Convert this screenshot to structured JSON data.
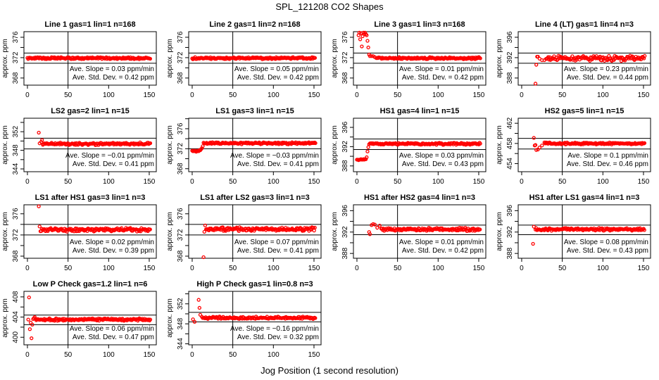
{
  "title": "SPL_121208  CO2 Shapes",
  "xlabel": "Jog Position (1 second resolution)",
  "colors": {
    "points": "#ff0000",
    "axes": "#000000"
  },
  "chart_data": {
    "type": "scatter",
    "shared": {
      "xlim": [
        -4.3,
        158.7
      ],
      "xticks": [
        0,
        50,
        100,
        150
      ],
      "ylabel": "approx. ppm",
      "vertical_reference_x": 50,
      "slope_prefix": "Ave. Slope = ",
      "slope_unit": " ppm/min",
      "sd_prefix": "Ave. Std. Dev. = ",
      "sd_unit": " ppm"
    },
    "panels": [
      {
        "title": "Line 1 gas=1 lin=1 n=168",
        "ylim": [
          366.6,
          377.1
        ],
        "yticks": [
          368,
          372,
          376
        ],
        "band": [
          370.9,
          372.9
        ],
        "slope": "0.03",
        "sd": "0.42",
        "transient": [],
        "steady": {
          "from": 0,
          "to": 152,
          "mean": 371.9,
          "noise": 0.12
        }
      },
      {
        "title": "Line 2 gas=1 lin=2 n=168",
        "ylim": [
          366.6,
          377.1
        ],
        "yticks": [
          368,
          372,
          376
        ],
        "band": [
          370.9,
          372.9
        ],
        "slope": "0.05",
        "sd": "0.42",
        "transient": [],
        "steady": {
          "from": 0,
          "to": 152,
          "mean": 371.9,
          "noise": 0.12
        }
      },
      {
        "title": "Line 3 gas=1 lin=3 n=168",
        "ylim": [
          366.6,
          377.1
        ],
        "yticks": [
          368,
          372,
          376
        ],
        "band": [
          370.9,
          372.9
        ],
        "slope": "0.01",
        "sd": "0.42",
        "transient": [
          [
            2,
            376.4
          ],
          [
            3,
            376.9
          ],
          [
            4,
            375.6
          ],
          [
            5,
            376.8
          ],
          [
            6,
            374.2
          ],
          [
            7,
            376.2
          ],
          [
            8,
            376.9
          ],
          [
            9,
            376.6
          ],
          [
            10,
            376.9
          ],
          [
            11,
            376.6
          ],
          [
            12,
            376.4
          ],
          [
            13,
            375.3
          ],
          [
            14,
            374.0
          ],
          [
            15,
            372.6
          ],
          [
            16,
            372.3
          ],
          [
            18,
            372.3
          ],
          [
            20,
            372.3
          ],
          [
            22,
            372.1
          ],
          [
            24,
            371.9
          ]
        ],
        "steady": {
          "from": 25,
          "to": 152,
          "mean": 371.9,
          "noise": 0.12
        }
      },
      {
        "title": "Line 4 (LT) gas=1 lin=4 n=3",
        "ylim": [
          386.6,
          397.1
        ],
        "yticks": [
          388,
          392,
          396
        ],
        "band": [
          390.9,
          392.9
        ],
        "slope": "0.23",
        "sd": "0.44",
        "transient": [
          [
            17,
            386.9
          ],
          [
            18,
            390.6
          ],
          [
            19,
            392.2
          ],
          [
            20,
            392.2
          ],
          [
            22,
            391.8
          ],
          [
            25,
            391.5
          ],
          [
            28,
            391.5
          ]
        ],
        "steady": {
          "from": 30,
          "to": 152,
          "mean": 391.9,
          "noise": 0.3
        }
      },
      {
        "title": "LS2 gas=2 lin=1 n=15",
        "ylim": [
          343.4,
          354.9
        ],
        "yticks": [
          344,
          348,
          352
        ],
        "band": [
          348.3,
          350.6
        ],
        "slope": "−0.01",
        "sd": "0.41",
        "transient": [
          [
            14,
            351.8
          ],
          [
            15,
            349.5
          ],
          [
            17,
            349.8
          ],
          [
            18,
            350.2
          ]
        ],
        "steady": {
          "from": 19,
          "to": 152,
          "mean": 349.4,
          "noise": 0.15
        }
      },
      {
        "title": "LS1 gas=3 lin=1 n=15",
        "ylim": [
          367.4,
          378.1
        ],
        "yticks": [
          368,
          372,
          376
        ],
        "band": [
          372.0,
          374.1
        ],
        "slope": "−0.03",
        "sd": "0.41",
        "transient": [
          [
            0,
            371.6
          ],
          [
            1,
            371.5
          ],
          [
            2,
            371.6
          ],
          [
            3,
            371.5
          ],
          [
            4,
            371.6
          ],
          [
            5,
            371.4
          ],
          [
            6,
            371.5
          ],
          [
            7,
            371.6
          ],
          [
            8,
            371.5
          ],
          [
            9,
            371.7
          ],
          [
            10,
            371.7
          ],
          [
            11,
            371.9
          ],
          [
            12,
            372.1
          ],
          [
            13,
            372.5
          ],
          [
            14,
            373.2
          ]
        ],
        "steady": {
          "from": 15,
          "to": 152,
          "mean": 373.1,
          "noise": 0.12
        }
      },
      {
        "title": "HS1 gas=4 lin=1 n=15",
        "ylim": [
          386.8,
          397.9
        ],
        "yticks": [
          388,
          392,
          396
        ],
        "band": [
          391.4,
          393.6
        ],
        "slope": "0.03",
        "sd": "0.43",
        "transient": [
          [
            0,
            389.3
          ],
          [
            1,
            389.3
          ],
          [
            2,
            389.2
          ],
          [
            3,
            389.3
          ],
          [
            4,
            389.3
          ],
          [
            5,
            389.4
          ],
          [
            6,
            389.3
          ],
          [
            7,
            389.3
          ],
          [
            8,
            389.4
          ],
          [
            9,
            389.3
          ],
          [
            10,
            389.4
          ],
          [
            11,
            389.4
          ],
          [
            12,
            389.8
          ],
          [
            13,
            391.0
          ],
          [
            14,
            391.9
          ],
          [
            15,
            392.5
          ]
        ],
        "steady": {
          "from": 16,
          "to": 152,
          "mean": 392.6,
          "noise": 0.13
        }
      },
      {
        "title": "HS2 gas=5 lin=1 n=15",
        "ylim": [
          452.4,
          463.0
        ],
        "yticks": [
          454,
          458,
          462
        ],
        "band": [
          456.9,
          459.0
        ],
        "slope": "0.1",
        "sd": "0.46",
        "transient": [
          [
            15,
            459.1
          ],
          [
            16,
            457.6
          ],
          [
            17,
            457.7
          ],
          [
            18,
            456.7
          ],
          [
            20,
            456.8
          ],
          [
            22,
            457.2
          ],
          [
            25,
            457.6
          ]
        ],
        "steady": {
          "from": 28,
          "to": 152,
          "mean": 458.0,
          "noise": 0.12
        }
      },
      {
        "title": "LS1 after HS1 gas=3 lin=1 n=3",
        "ylim": [
          367.6,
          377.7
        ],
        "yticks": [
          368,
          372,
          376
        ],
        "band": [
          372.0,
          374.0
        ],
        "slope": "0.02",
        "sd": "0.39",
        "transient": [
          [
            14,
            377.4
          ],
          [
            15,
            373.6
          ],
          [
            16,
            372.7
          ]
        ],
        "steady": {
          "from": 17,
          "to": 152,
          "mean": 373.0,
          "noise": 0.2
        }
      },
      {
        "title": "LS1 after LS2 gas=3 lin=1 n=3",
        "ylim": [
          367.6,
          377.7
        ],
        "yticks": [
          368,
          372,
          376
        ],
        "band": [
          372.0,
          374.0
        ],
        "slope": "0.07",
        "sd": "0.41",
        "transient": [
          [
            14,
            367.8
          ],
          [
            15,
            372.6
          ],
          [
            16,
            373.8
          ]
        ],
        "steady": {
          "from": 17,
          "to": 152,
          "mean": 373.1,
          "noise": 0.2
        }
      },
      {
        "title": "HS1 after HS2 gas=4 lin=1 n=3",
        "ylim": [
          387.1,
          397.1
        ],
        "yticks": [
          388,
          392,
          396
        ],
        "band": [
          391.5,
          393.3
        ],
        "slope": "0.01",
        "sd": "0.42",
        "transient": [
          [
            15,
            392.0
          ],
          [
            16,
            391.6
          ],
          [
            18,
            393.3
          ],
          [
            20,
            393.5
          ],
          [
            22,
            393.4
          ],
          [
            25,
            392.8
          ],
          [
            28,
            393.2
          ]
        ],
        "steady": {
          "from": 30,
          "to": 152,
          "mean": 392.5,
          "noise": 0.17
        }
      },
      {
        "title": "HS1 after LS1 gas=4 lin=1 n=3",
        "ylim": [
          387.1,
          397.1
        ],
        "yticks": [
          388,
          392,
          396
        ],
        "band": [
          391.5,
          393.3
        ],
        "slope": "0.08",
        "sd": "0.43",
        "transient": [
          [
            14,
            389.8
          ],
          [
            15,
            393.0
          ]
        ],
        "steady": {
          "from": 17,
          "to": 152,
          "mean": 392.5,
          "noise": 0.15
        }
      },
      {
        "title": "Low P Check gas=1.2 lin=1 n=6",
        "ylim": [
          398.5,
          409.1
        ],
        "yticks": [
          400,
          404,
          408
        ],
        "band": [
          402.5,
          404.4
        ],
        "slope": "0.06",
        "sd": "0.47",
        "transient": [
          [
            1,
            403.5
          ],
          [
            2,
            407.9
          ],
          [
            3,
            401.6
          ],
          [
            4,
            402.9
          ],
          [
            5,
            399.8
          ],
          [
            6,
            402.5
          ],
          [
            7,
            403.6
          ],
          [
            8,
            403.8
          ],
          [
            9,
            404.0
          ]
        ],
        "steady": {
          "from": 10,
          "to": 152,
          "mean": 403.5,
          "noise": 0.15
        }
      },
      {
        "title": "High P Check gas=1 lin=0.8 n=3",
        "ylim": [
          343.8,
          354.5
        ],
        "yticks": [
          344,
          348,
          352
        ],
        "band": [
          348.4,
          350.3
        ],
        "slope": "−0.16",
        "sd": "0.32",
        "transient": [
          [
            1,
            348.9
          ],
          [
            3,
            348.4
          ],
          [
            8,
            352.8
          ],
          [
            9,
            351.2
          ],
          [
            10,
            349.8
          ],
          [
            12,
            349.4
          ]
        ],
        "steady": {
          "from": 13,
          "to": 152,
          "mean": 349.2,
          "noise": 0.15
        }
      }
    ]
  }
}
